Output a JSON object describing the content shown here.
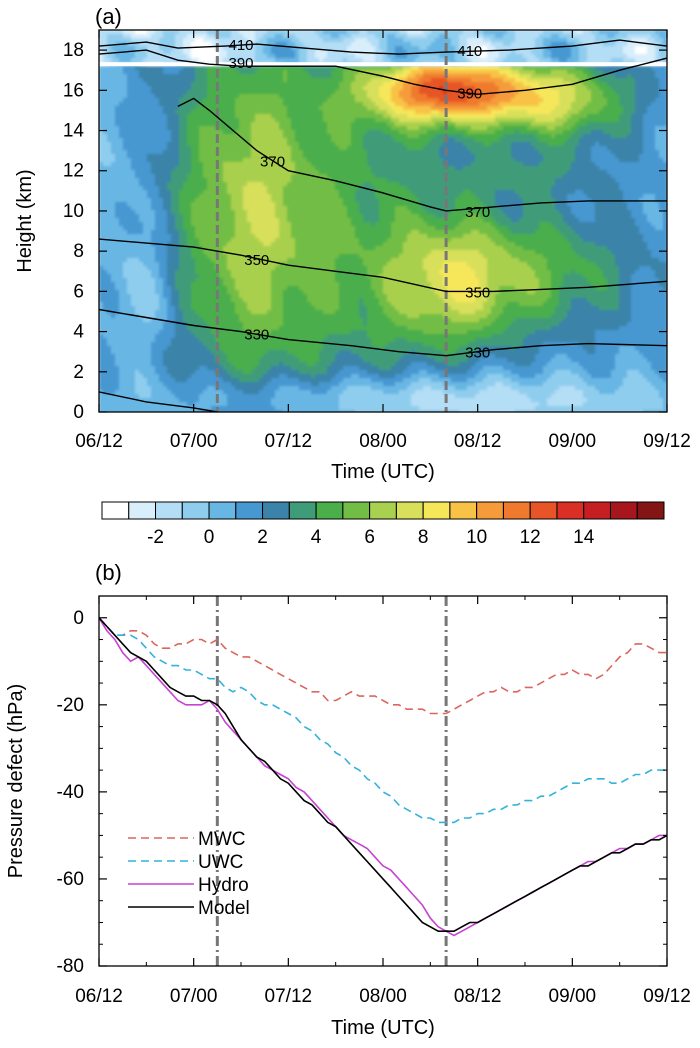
{
  "chart_data": [
    {
      "panel_label": "(a)",
      "type": "heatmap",
      "xlabel": "Time (UTC)",
      "ylabel": "Height (km)",
      "x_ticks": [
        "06/12",
        "07/00",
        "07/12",
        "08/00",
        "08/12",
        "09/00",
        "09/12"
      ],
      "y_ticks": [
        "0",
        "2",
        "4",
        "6",
        "8",
        "10",
        "12",
        "14",
        "16",
        "18"
      ],
      "ylim": [
        0,
        19
      ],
      "x_hours_range": [
        0,
        72
      ],
      "vertical_markers_hours": [
        15,
        44
      ],
      "colorbar": {
        "labels": [
          "-2",
          "0",
          "2",
          "4",
          "6",
          "8",
          "10",
          "12",
          "14"
        ],
        "colors": [
          "#ffffff",
          "#d8eefb",
          "#b4ddf6",
          "#8fcdee",
          "#67b6e4",
          "#4797d1",
          "#3b83a8",
          "#3f9c78",
          "#4aae4b",
          "#72bd45",
          "#a9d04e",
          "#d8df5a",
          "#f6e65a",
          "#f8c247",
          "#f59b3a",
          "#ef7a2e",
          "#e65428",
          "#d92f24",
          "#c51f24",
          "#a6161c",
          "#841515"
        ],
        "min": -4,
        "max": 16,
        "step": 1
      },
      "contours": [
        {
          "label": "330",
          "points": [
            [
              0,
              5.1
            ],
            [
              6,
              4.7
            ],
            [
              12,
              4.3
            ],
            [
              18,
              4.0
            ],
            [
              24,
              3.6
            ],
            [
              32,
              3.3
            ],
            [
              38,
              3.0
            ],
            [
              44,
              2.8
            ],
            [
              50,
              3.1
            ],
            [
              56,
              3.3
            ],
            [
              62,
              3.4
            ],
            [
              72,
              3.3
            ]
          ],
          "label_positions": [
            [
              20,
              3.9
            ],
            [
              48,
              3.0
            ]
          ]
        },
        {
          "label": "350",
          "points": [
            [
              0,
              8.6
            ],
            [
              6,
              8.4
            ],
            [
              12,
              8.2
            ],
            [
              18,
              7.8
            ],
            [
              24,
              7.3
            ],
            [
              30,
              7.0
            ],
            [
              36,
              6.7
            ],
            [
              44,
              6.0
            ],
            [
              50,
              6.0
            ],
            [
              56,
              6.1
            ],
            [
              62,
              6.2
            ],
            [
              72,
              6.5
            ]
          ],
          "label_positions": [
            [
              20,
              7.6
            ],
            [
              48,
              6.0
            ]
          ]
        },
        {
          "label": "370",
          "points": [
            [
              10,
              15.2
            ],
            [
              12,
              15.6
            ],
            [
              14,
              15.0
            ],
            [
              17,
              14.0
            ],
            [
              20,
              13.0
            ],
            [
              24,
              12.0
            ],
            [
              30,
              11.5
            ],
            [
              36,
              10.9
            ],
            [
              42,
              10.2
            ],
            [
              44,
              10.0
            ],
            [
              50,
              10.2
            ],
            [
              56,
              10.4
            ],
            [
              62,
              10.5
            ],
            [
              72,
              10.5
            ]
          ],
          "label_positions": [
            [
              22,
              12.5
            ],
            [
              48,
              10.0
            ]
          ]
        },
        {
          "label": "390",
          "points": [
            [
              0,
              17.8
            ],
            [
              6,
              18.0
            ],
            [
              10,
              17.5
            ],
            [
              14,
              17.3
            ],
            [
              18,
              17.2
            ],
            [
              24,
              17.2
            ],
            [
              30,
              17.2
            ],
            [
              36,
              16.7
            ],
            [
              40,
              16.3
            ],
            [
              44,
              16.0
            ],
            [
              48,
              15.8
            ],
            [
              54,
              16.0
            ],
            [
              60,
              16.3
            ],
            [
              66,
              17.0
            ],
            [
              72,
              17.6
            ]
          ],
          "label_positions": [
            [
              18,
              17.4
            ],
            [
              47,
              15.9
            ]
          ]
        },
        {
          "label": "410",
          "points": [
            [
              0,
              18.2
            ],
            [
              6,
              18.4
            ],
            [
              10,
              18.1
            ],
            [
              16,
              18.2
            ],
            [
              20,
              18.3
            ],
            [
              26,
              18.1
            ],
            [
              32,
              17.9
            ],
            [
              38,
              17.8
            ],
            [
              44,
              17.9
            ],
            [
              52,
              18.0
            ],
            [
              60,
              18.2
            ],
            [
              66,
              18.5
            ],
            [
              72,
              18.2
            ]
          ],
          "label_positions": [
            [
              18,
              18.3
            ],
            [
              47,
              18.0
            ]
          ]
        }
      ]
    },
    {
      "panel_label": "(b)",
      "type": "line",
      "xlabel": "Time (UTC)",
      "ylabel": "Pressure defect (hPa)",
      "x_ticks": [
        "06/12",
        "07/00",
        "07/12",
        "08/00",
        "08/12",
        "09/00",
        "09/12"
      ],
      "y_ticks": [
        "0",
        "-20",
        "-40",
        "-60",
        "-80"
      ],
      "ylim": [
        -80,
        5
      ],
      "x_hours_range": [
        0,
        72
      ],
      "vertical_markers_hours": [
        15,
        44
      ],
      "legend_position": "bottom-left",
      "series": [
        {
          "name": "MWC",
          "color": "#d9675f",
          "dash": "dashed",
          "x": [
            0,
            1,
            2,
            3,
            4,
            5,
            6,
            7,
            8,
            9,
            10,
            11,
            12,
            13,
            14,
            15,
            16,
            17,
            18,
            19,
            20,
            21,
            22,
            23,
            24,
            25,
            26,
            27,
            28,
            29,
            30,
            31,
            32,
            33,
            34,
            35,
            36,
            37,
            38,
            39,
            40,
            41,
            42,
            43,
            44,
            45,
            46,
            47,
            48,
            49,
            50,
            51,
            52,
            53,
            54,
            55,
            56,
            57,
            58,
            59,
            60,
            61,
            62,
            63,
            64,
            65,
            66,
            67,
            68,
            69,
            70,
            71,
            72
          ],
          "y": [
            0,
            -2,
            -4,
            -4,
            -3,
            -3,
            -4,
            -6,
            -7,
            -7,
            -6,
            -6,
            -5,
            -5,
            -6,
            -5,
            -7,
            -8,
            -9,
            -9,
            -10,
            -11,
            -12,
            -13,
            -14,
            -15,
            -16,
            -17,
            -17,
            -19,
            -19,
            -18,
            -17,
            -18,
            -18,
            -18,
            -19,
            -20,
            -20,
            -21,
            -21,
            -21,
            -22,
            -22,
            -22,
            -21,
            -20,
            -19,
            -18,
            -17,
            -17,
            -16,
            -17,
            -17,
            -16,
            -16,
            -15,
            -14,
            -13,
            -13,
            -12,
            -13,
            -13,
            -14,
            -13,
            -11,
            -9,
            -8,
            -6,
            -6,
            -7,
            -8,
            -8
          ]
        },
        {
          "name": "UWC",
          "color": "#35b2dc",
          "dash": "dashed",
          "x": [
            0,
            1,
            2,
            3,
            4,
            5,
            6,
            7,
            8,
            9,
            10,
            11,
            12,
            13,
            14,
            15,
            16,
            17,
            18,
            19,
            20,
            21,
            22,
            23,
            24,
            25,
            26,
            27,
            28,
            29,
            30,
            31,
            32,
            33,
            34,
            35,
            36,
            37,
            38,
            39,
            40,
            41,
            42,
            43,
            44,
            45,
            46,
            47,
            48,
            49,
            50,
            51,
            52,
            53,
            54,
            55,
            56,
            57,
            58,
            59,
            60,
            61,
            62,
            63,
            64,
            65,
            66,
            67,
            68,
            69,
            70,
            71,
            72
          ],
          "y": [
            0,
            -2,
            -4,
            -4,
            -4,
            -5,
            -7,
            -9,
            -10,
            -11,
            -11,
            -12,
            -12,
            -13,
            -14,
            -14,
            -16,
            -17,
            -16,
            -17,
            -19,
            -20,
            -20,
            -21,
            -22,
            -23,
            -25,
            -26,
            -28,
            -29,
            -31,
            -32,
            -34,
            -35,
            -37,
            -38,
            -40,
            -41,
            -43,
            -44,
            -45,
            -46,
            -46,
            -47,
            -47,
            -47,
            -46,
            -46,
            -45,
            -45,
            -44,
            -44,
            -43,
            -43,
            -42,
            -42,
            -41,
            -41,
            -40,
            -39,
            -38,
            -38,
            -37,
            -37,
            -37,
            -38,
            -38,
            -37,
            -36,
            -36,
            -35,
            -35,
            -35
          ]
        },
        {
          "name": "Hydro",
          "color": "#c743d2",
          "dash": "solid",
          "x": [
            0,
            1,
            2,
            3,
            4,
            5,
            6,
            7,
            8,
            9,
            10,
            11,
            12,
            13,
            14,
            15,
            16,
            17,
            18,
            19,
            20,
            21,
            22,
            23,
            24,
            25,
            26,
            27,
            28,
            29,
            30,
            31,
            32,
            33,
            34,
            35,
            36,
            37,
            38,
            39,
            40,
            41,
            42,
            43,
            44,
            45,
            46,
            47,
            48,
            49,
            50,
            51,
            52,
            53,
            54,
            55,
            56,
            57,
            58,
            59,
            60,
            61,
            62,
            63,
            64,
            65,
            66,
            67,
            68,
            69,
            70,
            71,
            72
          ],
          "y": [
            0,
            -3,
            -5,
            -8,
            -10,
            -9,
            -11,
            -13,
            -15,
            -17,
            -19,
            -20,
            -20,
            -20,
            -19,
            -21,
            -24,
            -26,
            -28,
            -30,
            -32,
            -34,
            -35,
            -36,
            -37,
            -39,
            -40,
            -42,
            -44,
            -46,
            -48,
            -50,
            -51,
            -52,
            -53,
            -55,
            -57,
            -58,
            -60,
            -62,
            -64,
            -66,
            -69,
            -71,
            -72,
            -73,
            -72,
            -71,
            -70,
            -69,
            -68,
            -67,
            -66,
            -65,
            -64,
            -63,
            -62,
            -61,
            -60,
            -59,
            -58,
            -57,
            -56,
            -56,
            -55,
            -54,
            -53,
            -53,
            -52,
            -52,
            -51,
            -50,
            -50
          ]
        },
        {
          "name": "Model",
          "color": "#000000",
          "dash": "solid",
          "x": [
            0,
            1,
            2,
            3,
            4,
            5,
            6,
            7,
            8,
            9,
            10,
            11,
            12,
            13,
            14,
            15,
            16,
            17,
            18,
            19,
            20,
            21,
            22,
            23,
            24,
            25,
            26,
            27,
            28,
            29,
            30,
            31,
            32,
            33,
            34,
            35,
            36,
            37,
            38,
            39,
            40,
            41,
            42,
            43,
            44,
            45,
            46,
            47,
            48,
            49,
            50,
            51,
            52,
            53,
            54,
            55,
            56,
            57,
            58,
            59,
            60,
            61,
            62,
            63,
            64,
            65,
            66,
            67,
            68,
            69,
            70,
            71,
            72
          ],
          "y": [
            0,
            -2,
            -4,
            -6,
            -8,
            -9,
            -10,
            -12,
            -14,
            -16,
            -17,
            -18,
            -18,
            -19,
            -19,
            -20,
            -22,
            -25,
            -28,
            -30,
            -32,
            -33,
            -35,
            -37,
            -38,
            -40,
            -42,
            -43,
            -45,
            -47,
            -48,
            -50,
            -52,
            -54,
            -56,
            -58,
            -60,
            -62,
            -64,
            -66,
            -68,
            -70,
            -71,
            -72,
            -72,
            -72,
            -71,
            -70,
            -70,
            -69,
            -68,
            -67,
            -66,
            -65,
            -64,
            -63,
            -62,
            -61,
            -60,
            -59,
            -58,
            -57,
            -57,
            -56,
            -55,
            -54,
            -54,
            -53,
            -52,
            -52,
            -51,
            -51,
            -50
          ]
        }
      ]
    }
  ]
}
